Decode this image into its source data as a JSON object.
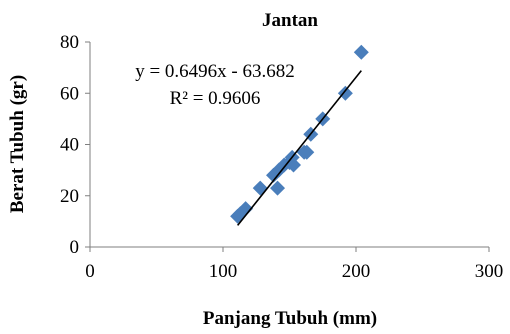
{
  "chart_data": {
    "type": "scatter",
    "title": "Jantan",
    "xlabel": "Panjang Tubuh (mm)",
    "ylabel": "Berat Tubuh (gr)",
    "xlim": [
      0,
      300
    ],
    "ylim": [
      0,
      80
    ],
    "x_ticks": [
      "0",
      "100",
      "200",
      "300"
    ],
    "y_ticks": [
      "0",
      "20",
      "40",
      "60",
      "80"
    ],
    "grid": false,
    "legend": "none",
    "marker": "diamond",
    "marker_color": "#4a7ebb",
    "trendline": {
      "equation": "y = 0.6496x - 63.682",
      "r_squared": "R² = 0.9606",
      "slope": 0.6496,
      "intercept": -63.682,
      "x_range": [
        111,
        204
      ],
      "color": "#000000"
    },
    "points": [
      {
        "x": 111,
        "y": 12
      },
      {
        "x": 113,
        "y": 13
      },
      {
        "x": 117,
        "y": 15
      },
      {
        "x": 128,
        "y": 23
      },
      {
        "x": 138,
        "y": 28
      },
      {
        "x": 141,
        "y": 23
      },
      {
        "x": 142,
        "y": 30
      },
      {
        "x": 146,
        "y": 32
      },
      {
        "x": 150,
        "y": 33
      },
      {
        "x": 152,
        "y": 35
      },
      {
        "x": 153,
        "y": 32
      },
      {
        "x": 161,
        "y": 37
      },
      {
        "x": 163,
        "y": 37
      },
      {
        "x": 166,
        "y": 44
      },
      {
        "x": 175,
        "y": 50
      },
      {
        "x": 192,
        "y": 60
      },
      {
        "x": 204,
        "y": 76
      }
    ]
  }
}
